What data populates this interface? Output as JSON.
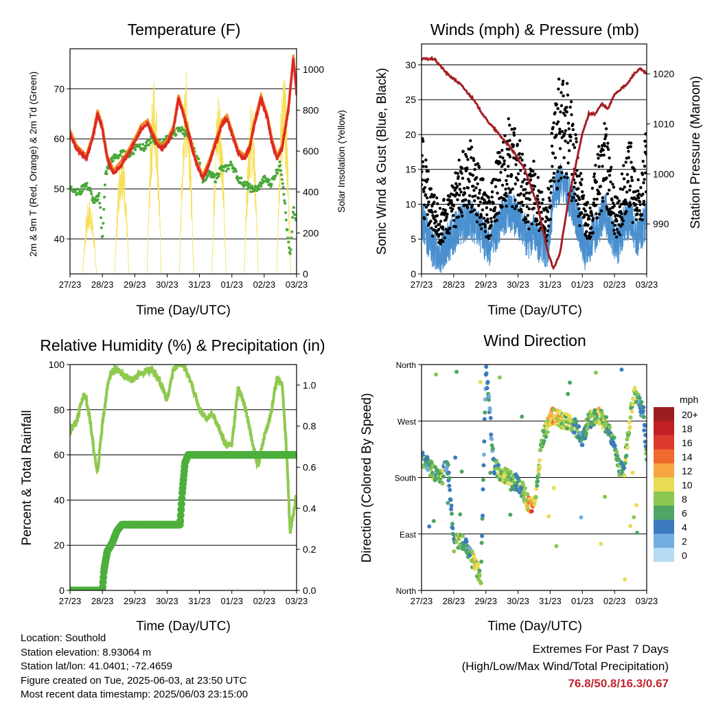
{
  "x_ticks": [
    "27/23",
    "28/23",
    "29/23",
    "30/23",
    "31/23",
    "01/23",
    "02/23",
    "03/23"
  ],
  "x_label": "Time (Day/UTC)",
  "colors": {
    "temp2m": "#dd2a23",
    "temp9m": "#f4881f",
    "dewpoint": "#49a83a",
    "solar": "#f7df55",
    "wind": "#4a90cf",
    "gust": "#000000",
    "pressure": "#a31f25",
    "rh": "#8fc94f",
    "precip": "#4caf3c",
    "extremes": "#c0262d"
  },
  "chart_data": [
    {
      "type": "line",
      "title": "Temperature (F)",
      "ylabel": "2m & 9m T (Red, Orange) & 2m Td (Green)",
      "ylabel_right": "Solar Insolation (Yellow)",
      "ylim": [
        33,
        78
      ],
      "yticks": [
        40,
        50,
        60,
        70
      ],
      "ylim_right": [
        0,
        1100
      ],
      "yticks_right": [
        0,
        200,
        400,
        600,
        800,
        1000
      ],
      "grid": true,
      "series": [
        {
          "key": "temp2m",
          "x": [
            0,
            0.2,
            0.5,
            0.7,
            0.85,
            1.0,
            1.15,
            1.35,
            1.6,
            1.8,
            2.05,
            2.2,
            2.4,
            2.6,
            2.8,
            3.0,
            3.2,
            3.35,
            3.5,
            3.7,
            3.9,
            4.1,
            4.3,
            4.55,
            4.7,
            4.85,
            5.05,
            5.2,
            5.4,
            5.55,
            5.7,
            5.9,
            6.1,
            6.25,
            6.4,
            6.55,
            6.75,
            6.9,
            7.0
          ],
          "y": [
            61,
            58,
            56,
            60,
            65,
            62,
            56,
            53,
            55,
            57,
            60,
            62,
            63,
            60,
            58,
            59,
            62,
            68,
            65,
            60,
            55,
            52,
            55,
            60,
            63,
            64,
            60,
            57,
            56,
            58,
            63,
            68,
            64,
            59,
            56,
            58,
            66,
            76,
            69
          ]
        },
        {
          "key": "dewpoint",
          "x": [
            0,
            0.1,
            0.3,
            0.45,
            0.6,
            0.75,
            0.9,
            1.0,
            1.1,
            1.3,
            1.6,
            1.9,
            2.1,
            2.3,
            2.5,
            2.8,
            3.0,
            3.2,
            3.4,
            3.6,
            3.8,
            4.0,
            4.1,
            4.3,
            4.5,
            4.65,
            4.8,
            5.0,
            5.2,
            5.4,
            5.6,
            5.8,
            6.0,
            6.2,
            6.35,
            6.5,
            6.6,
            6.7,
            6.8,
            6.9,
            7.0
          ],
          "y": [
            50,
            50,
            49,
            51,
            50,
            47,
            49,
            40,
            53,
            56,
            57,
            57,
            59,
            58,
            60,
            59,
            60,
            61,
            62,
            61,
            58,
            55,
            52,
            53,
            52,
            54,
            54,
            55,
            52,
            51,
            50,
            50,
            52,
            51,
            53,
            55,
            50,
            42,
            36,
            46,
            43
          ]
        },
        {
          "key": "solar",
          "peaks": [
            [
              0.6,
              370
            ],
            [
              1.6,
              660
            ],
            [
              2.6,
              980
            ],
            [
              3.6,
              1000
            ],
            [
              4.6,
              930
            ],
            [
              5.6,
              850
            ],
            [
              6.6,
              1000
            ]
          ]
        }
      ]
    },
    {
      "type": "scatter",
      "title": "Winds (mph) & Pressure (mb)",
      "ylabel": "Sonic Wind & Gust (Blue, Black)",
      "ylabel_right": "Station Pressure (Maroon)",
      "ylim": [
        0,
        33
      ],
      "yticks": [
        0,
        5,
        10,
        15,
        20,
        25,
        30
      ],
      "ylim_right": [
        980,
        1026
      ],
      "yticks_right": [
        990,
        1000,
        1010,
        1020
      ],
      "grid": true,
      "series": [
        {
          "key": "gust",
          "x": [
            0,
            0.3,
            0.6,
            0.9,
            1.2,
            1.5,
            1.8,
            2.1,
            2.4,
            2.7,
            3.0,
            3.3,
            3.5,
            3.7,
            3.9,
            4.1,
            4.3,
            4.5,
            4.7,
            4.9,
            5.1,
            5.3,
            5.5,
            5.7,
            5.9,
            6.1,
            6.3,
            6.5,
            6.7,
            6.9,
            7.0
          ],
          "y": [
            15,
            9,
            7,
            9,
            12,
            14,
            11,
            8,
            13,
            16,
            15,
            10,
            12,
            9,
            7,
            18,
            21,
            20,
            17,
            12,
            7,
            9,
            13,
            16,
            11,
            8,
            12,
            14,
            9,
            13,
            15
          ]
        },
        {
          "key": "wind",
          "x": [
            0,
            0.3,
            0.6,
            0.9,
            1.2,
            1.5,
            1.8,
            2.1,
            2.4,
            2.7,
            3.0,
            3.3,
            3.5,
            3.7,
            3.9,
            4.1,
            4.3,
            4.5,
            4.7,
            4.9,
            5.1,
            5.3,
            5.5,
            5.7,
            5.9,
            6.1,
            6.3,
            6.5,
            6.7,
            6.9,
            7.0
          ],
          "y": [
            8,
            4,
            3,
            5,
            7,
            8,
            6,
            4,
            7,
            9,
            8,
            5,
            6,
            4,
            3,
            11,
            13,
            12,
            10,
            7,
            3,
            5,
            7,
            9,
            6,
            4,
            7,
            8,
            5,
            7,
            8
          ]
        },
        {
          "key": "pressure",
          "x": [
            0,
            0.4,
            0.8,
            1.2,
            1.6,
            2.0,
            2.4,
            2.8,
            3.2,
            3.6,
            3.9,
            4.1,
            4.3,
            4.45,
            4.6,
            4.8,
            5.0,
            5.2,
            5.4,
            5.6,
            5.8,
            6.0,
            6.2,
            6.4,
            6.6,
            6.8,
            7.0
          ],
          "y": [
            1023,
            1023,
            1020,
            1018,
            1015,
            1011,
            1008,
            1005,
            1001,
            994,
            985,
            981,
            984,
            990,
            996,
            1002,
            1008,
            1012,
            1012,
            1014,
            1013,
            1016,
            1017,
            1018,
            1020,
            1021,
            1020
          ]
        }
      ]
    },
    {
      "type": "line",
      "title": "Relative Humidity (%) & Precipitation (in)",
      "ylabel": "Percent & Total Rainfall",
      "ylim": [
        0,
        100
      ],
      "yticks": [
        0,
        20,
        40,
        60,
        80,
        100
      ],
      "ylim_right": [
        0,
        1.1
      ],
      "yticks_right": [
        "0.0",
        "0.2",
        "0.4",
        "0.6",
        "0.8",
        "1.0"
      ],
      "grid": true,
      "series": [
        {
          "key": "rh",
          "x": [
            0,
            0.2,
            0.45,
            0.6,
            0.75,
            0.85,
            1.0,
            1.2,
            1.4,
            1.6,
            1.9,
            2.2,
            2.5,
            2.8,
            3.0,
            3.2,
            3.35,
            3.5,
            3.8,
            4.0,
            4.2,
            4.4,
            4.6,
            4.8,
            5.0,
            5.2,
            5.4,
            5.6,
            5.8,
            6.0,
            6.2,
            6.4,
            6.55,
            6.7,
            6.8,
            6.9,
            7.0
          ],
          "y": [
            70,
            75,
            88,
            78,
            60,
            52,
            74,
            94,
            98,
            96,
            93,
            96,
            98,
            92,
            84,
            98,
            100,
            100,
            90,
            80,
            76,
            78,
            72,
            64,
            65,
            90,
            82,
            68,
            55,
            68,
            78,
            94,
            92,
            60,
            25,
            34,
            42
          ]
        },
        {
          "key": "precip",
          "x": [
            0,
            0.9,
            1.0,
            1.05,
            1.15,
            1.3,
            1.45,
            1.6,
            2.0,
            2.5,
            3.0,
            3.4,
            3.47,
            3.55,
            3.65,
            4.0,
            5.0,
            6.0,
            7.0
          ],
          "y": [
            0,
            0,
            0,
            0.1,
            0.19,
            0.23,
            0.29,
            0.32,
            0.32,
            0.32,
            0.32,
            0.32,
            0.48,
            0.62,
            0.66,
            0.66,
            0.66,
            0.66,
            0.66
          ]
        }
      ]
    },
    {
      "type": "scatter",
      "title": "Wind Direction",
      "ylabel": "Direction (Colored By Speed)",
      "yticks": [
        "North",
        "East",
        "South",
        "West",
        "North"
      ],
      "ylim": [
        0,
        360
      ],
      "grid": true,
      "colorbar_title": "mph",
      "colorbar_labels": [
        "20+",
        "18",
        "16",
        "14",
        "12",
        "10",
        "8",
        "6",
        "4",
        "2",
        "0"
      ],
      "colorbar_colors": [
        "#9b1d20",
        "#c12026",
        "#dc3a2c",
        "#f06a2f",
        "#f7a541",
        "#e9dc55",
        "#8ac850",
        "#4ea566",
        "#3c7bbf",
        "#73aee0",
        "#b5dcf3"
      ],
      "series": [
        {
          "key": "direction",
          "x": [
            0,
            0.1,
            0.2,
            0.35,
            0.5,
            0.65,
            0.75,
            0.85,
            1.0,
            1.15,
            1.3,
            1.5,
            1.65,
            1.75,
            1.85,
            2.0,
            2.1,
            2.25,
            2.4,
            2.55,
            2.7,
            2.85,
            3.0,
            3.15,
            3.3,
            3.45,
            3.6,
            3.75,
            3.9,
            4.05,
            4.2,
            4.35,
            4.5,
            4.7,
            4.85,
            5.0,
            5.15,
            5.3,
            5.5,
            5.65,
            5.8,
            6.0,
            6.15,
            6.3,
            6.45,
            6.6,
            6.75,
            6.9,
            7.0
          ],
          "y": [
            210,
            205,
            200,
            190,
            185,
            180,
            200,
            185,
            70,
            80,
            75,
            60,
            40,
            30,
            20,
            350,
            300,
            200,
            190,
            185,
            180,
            175,
            170,
            160,
            140,
            130,
            170,
            240,
            260,
            280,
            275,
            272,
            270,
            265,
            255,
            240,
            265,
            275,
            280,
            270,
            260,
            230,
            200,
            190,
            260,
            320,
            300,
            280,
            210
          ],
          "s": [
            5,
            7,
            4,
            8,
            6,
            9,
            3,
            5,
            6,
            8,
            5,
            4,
            10,
            9,
            7,
            3,
            4,
            5,
            7,
            9,
            8,
            6,
            5,
            6,
            11,
            13,
            8,
            7,
            9,
            12,
            10,
            9,
            8,
            7,
            5,
            4,
            6,
            7,
            9,
            8,
            6,
            5,
            6,
            7,
            8,
            9,
            5,
            4,
            8
          ]
        }
      ]
    }
  ],
  "info": {
    "location": "Location: Southold",
    "elevation": "Station elevation: 8.93064 m",
    "latlon": "Station lat/lon: 41.0401; -72.4659",
    "created": "Figure created on Tue, 2025-06-03, at 23:50 UTC",
    "recent": "Most recent data timestamp: 2025/06/03 23:15:00"
  },
  "extremes": {
    "title": "Extremes For Past 7 Days",
    "subtitle": "(High/Low/Max Wind/Total Precipitation)",
    "values": "76.8/50.8/16.3/0.67"
  }
}
